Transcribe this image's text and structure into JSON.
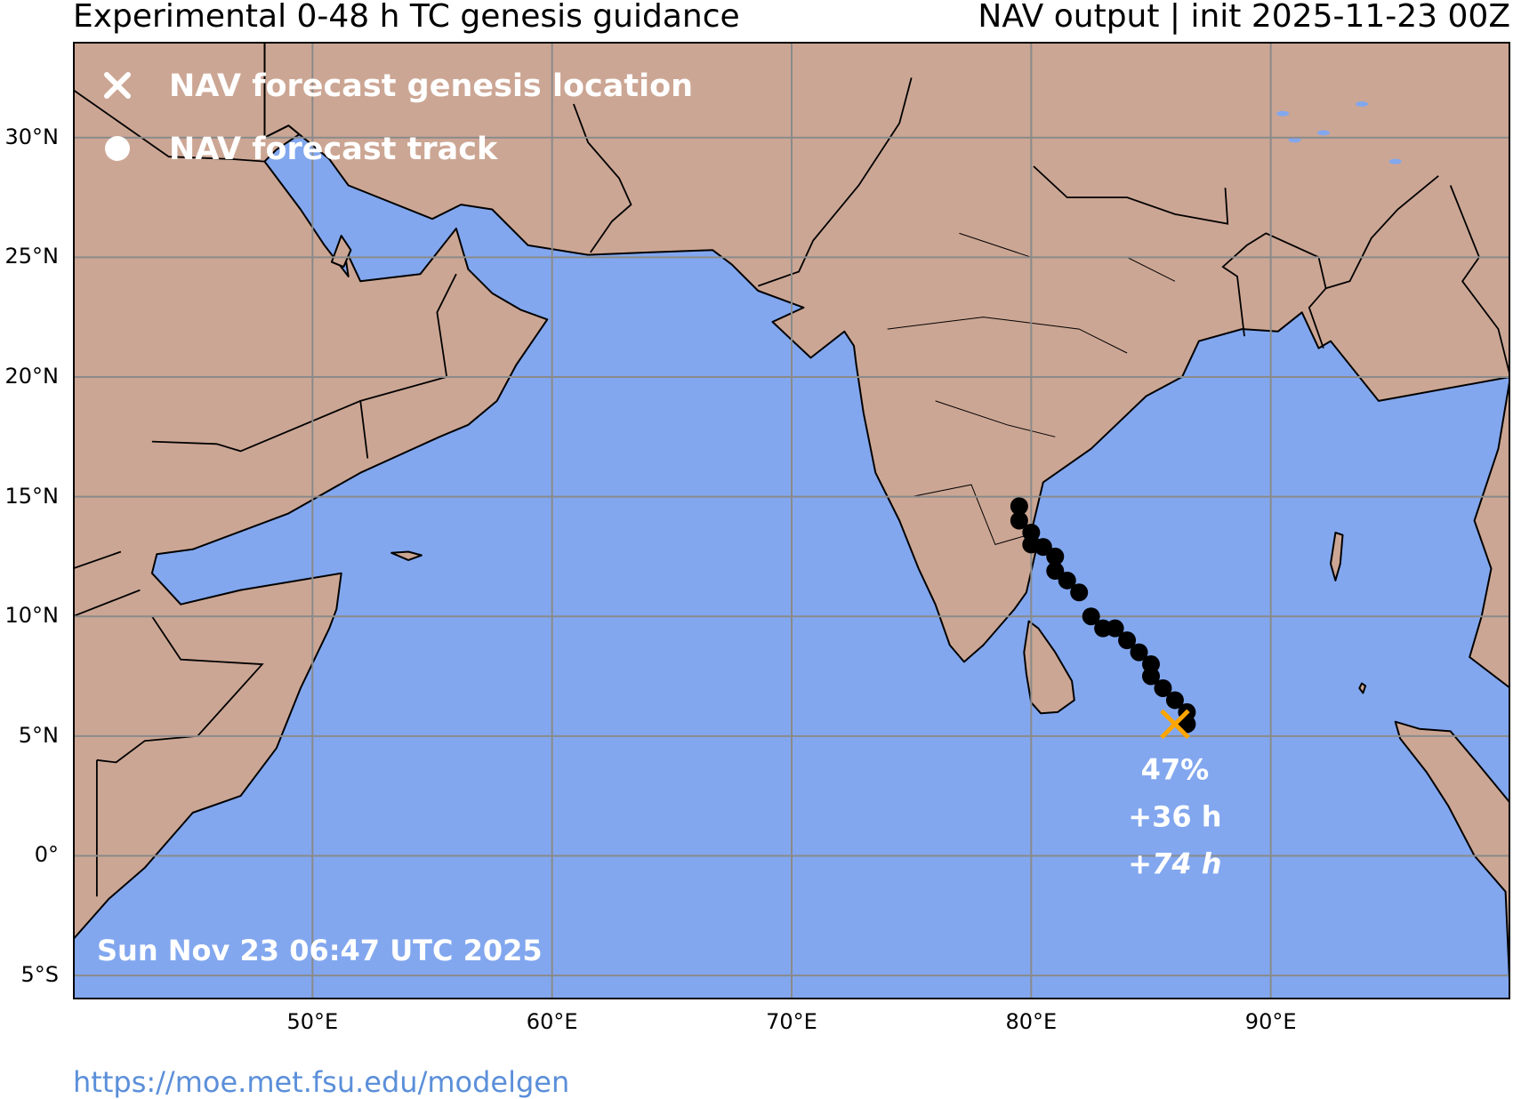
{
  "header": {
    "title_left": "Experimental 0-48 h TC genesis guidance",
    "title_right": "NAV output | init 2025-11-23 00Z"
  },
  "legend": {
    "genesis_label": "NAV forecast genesis location",
    "genesis_icon": "x-marker-icon",
    "track_label": "NAV forecast track",
    "track_icon": "filled-circle-icon"
  },
  "colors": {
    "ocean": "#82a7ef",
    "land": "#cca694",
    "coast": "#000000",
    "grid": "#8a8a8a",
    "track": "#000000",
    "genesis_marker": "#ffa500",
    "annotation": "#ffffff",
    "link": "#5b8fd9"
  },
  "map": {
    "lon_range": [
      40,
      100
    ],
    "lat_range": [
      -6,
      34
    ],
    "lon_ticks": [
      "50°E",
      "60°E",
      "70°E",
      "80°E",
      "90°E"
    ],
    "lat_ticks": [
      "30°N",
      "25°N",
      "20°N",
      "15°N",
      "10°N",
      "5°N",
      "0°",
      "5°S"
    ],
    "timestamp": "Sun Nov 23 06:47 UTC 2025"
  },
  "track": [
    {
      "lon": 79.5,
      "lat": 14.6
    },
    {
      "lon": 79.5,
      "lat": 14.0
    },
    {
      "lon": 80.0,
      "lat": 13.5
    },
    {
      "lon": 80.0,
      "lat": 13.0
    },
    {
      "lon": 80.5,
      "lat": 12.9
    },
    {
      "lon": 81.0,
      "lat": 12.5
    },
    {
      "lon": 81.0,
      "lat": 11.9
    },
    {
      "lon": 81.5,
      "lat": 11.5
    },
    {
      "lon": 82.0,
      "lat": 11.0
    },
    {
      "lon": 82.5,
      "lat": 10.0
    },
    {
      "lon": 83.0,
      "lat": 9.5
    },
    {
      "lon": 83.5,
      "lat": 9.5
    },
    {
      "lon": 84.0,
      "lat": 9.0
    },
    {
      "lon": 84.5,
      "lat": 8.5
    },
    {
      "lon": 85.0,
      "lat": 8.0
    },
    {
      "lon": 85.0,
      "lat": 7.5
    },
    {
      "lon": 85.5,
      "lat": 7.0
    },
    {
      "lon": 86.0,
      "lat": 6.5
    },
    {
      "lon": 86.5,
      "lat": 6.0
    },
    {
      "lon": 86.5,
      "lat": 5.5
    }
  ],
  "genesis": {
    "lon": 86.0,
    "lat": 5.5,
    "probability": "47%",
    "lead_time": "+36 h",
    "track_end": "+74 h"
  },
  "footer": {
    "link_text": "https://moe.met.fsu.edu/modelgen"
  }
}
